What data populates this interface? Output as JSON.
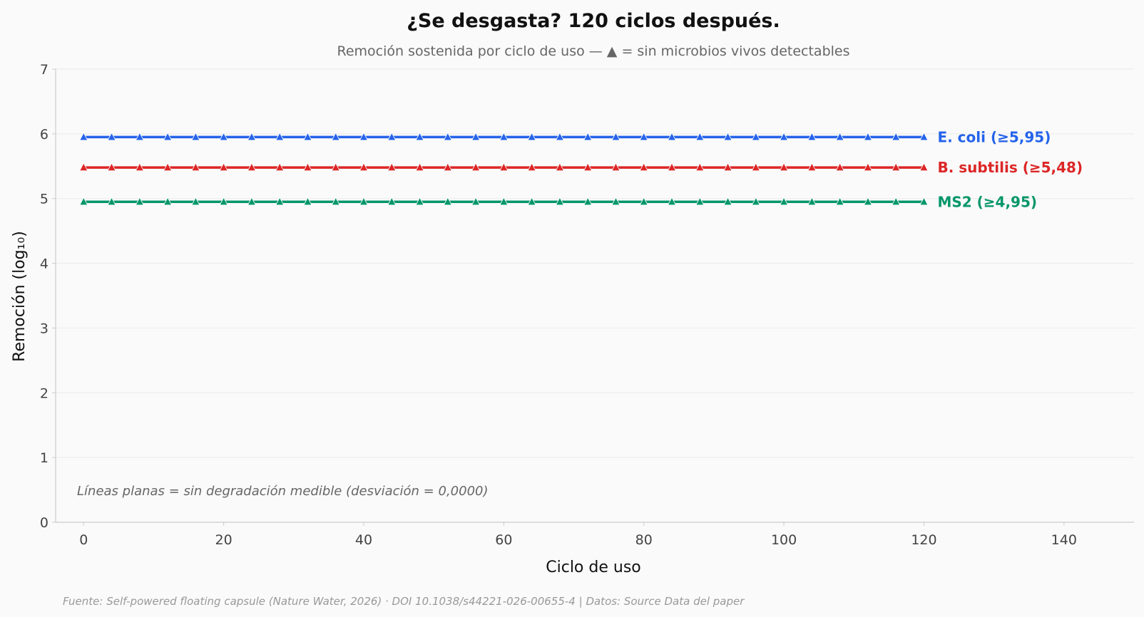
{
  "chart_data": {
    "type": "line",
    "title": "¿Se desgasta? 120 ciclos después.",
    "subtitle": "Remoción sostenida por ciclo de uso — ▲ = sin microbios vivos detectables",
    "xlabel": "Ciclo de uso",
    "ylabel": "Remoción (log₁₀)",
    "xlim": [
      -4,
      150
    ],
    "ylim": [
      0,
      7
    ],
    "xticks": [
      0,
      20,
      40,
      60,
      80,
      100,
      120,
      140
    ],
    "yticks": [
      0,
      1,
      2,
      3,
      4,
      5,
      6,
      7
    ],
    "grid": "horizontal",
    "x": [
      0,
      4,
      8,
      12,
      16,
      20,
      24,
      28,
      32,
      36,
      40,
      44,
      48,
      52,
      56,
      60,
      64,
      68,
      72,
      76,
      80,
      84,
      88,
      92,
      96,
      100,
      104,
      108,
      112,
      116,
      120
    ],
    "series": [
      {
        "name": "E. coli",
        "label": "E. coli  (≥5,95)",
        "color": "#2563eb",
        "marker": "triangle",
        "values": [
          5.95,
          5.95,
          5.95,
          5.95,
          5.95,
          5.95,
          5.95,
          5.95,
          5.95,
          5.95,
          5.95,
          5.95,
          5.95,
          5.95,
          5.95,
          5.95,
          5.95,
          5.95,
          5.95,
          5.95,
          5.95,
          5.95,
          5.95,
          5.95,
          5.95,
          5.95,
          5.95,
          5.95,
          5.95,
          5.95,
          5.95
        ]
      },
      {
        "name": "B. subtilis",
        "label": "B. subtilis  (≥5,48)",
        "color": "#dc2626",
        "marker": "triangle",
        "values": [
          5.48,
          5.48,
          5.48,
          5.48,
          5.48,
          5.48,
          5.48,
          5.48,
          5.48,
          5.48,
          5.48,
          5.48,
          5.48,
          5.48,
          5.48,
          5.48,
          5.48,
          5.48,
          5.48,
          5.48,
          5.48,
          5.48,
          5.48,
          5.48,
          5.48,
          5.48,
          5.48,
          5.48,
          5.48,
          5.48,
          5.48
        ]
      },
      {
        "name": "MS2",
        "label": "MS2  (≥4,95)",
        "color": "#059669",
        "marker": "triangle",
        "values": [
          4.95,
          4.95,
          4.95,
          4.95,
          4.95,
          4.95,
          4.95,
          4.95,
          4.95,
          4.95,
          4.95,
          4.95,
          4.95,
          4.95,
          4.95,
          4.95,
          4.95,
          4.95,
          4.95,
          4.95,
          4.95,
          4.95,
          4.95,
          4.95,
          4.95,
          4.95,
          4.95,
          4.95,
          4.95,
          4.95,
          4.95
        ]
      }
    ],
    "annotation": "Líneas planas = sin degradación medible (desviación = 0,0000)",
    "source": "Fuente: Self-powered floating capsule (Nature Water, 2026) · DOI 10.1038/s44221-026-00655-4 | Datos: Source Data del paper"
  }
}
